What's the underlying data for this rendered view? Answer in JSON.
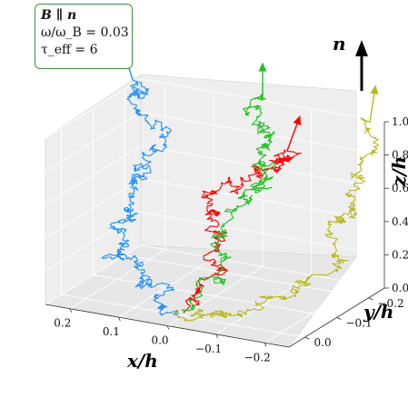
{
  "chart_data": {
    "type": "3d-line",
    "annotation": {
      "line1": "B ∥ n",
      "line2": "ω/ω_B = 0.03",
      "line3": "τ_eff = 6"
    },
    "xlabel": "x/h",
    "ylabel": "y/h",
    "zlabel": "z/h",
    "n_label": "n",
    "x_ticks": [
      "0.2",
      "0.1",
      "0.0",
      "−0.1",
      "−0.2"
    ],
    "y_ticks": [
      "−0.2",
      "−0.1",
      "0.0"
    ],
    "z_ticks": [
      "0.0",
      "0.2",
      "0.4",
      "0.6",
      "0.8",
      "1.0"
    ],
    "xlim": [
      -0.25,
      0.25
    ],
    "ylim": [
      -0.25,
      0.05
    ],
    "zlim": [
      0.0,
      1.0
    ],
    "grid": true,
    "series": [
      {
        "color": "#1e90ff",
        "start": [
          0.0,
          0.0,
          0.0
        ],
        "end": [
          0.26,
          -0.24,
          1.0
        ],
        "exit_arrow": true
      },
      {
        "color": "#ff0000",
        "start": [
          0.0,
          0.0,
          0.0
        ],
        "end": [
          -0.05,
          -0.25,
          0.72
        ],
        "exit_arrow": true
      },
      {
        "color": "#22c022",
        "start": [
          0.0,
          0.0,
          0.0
        ],
        "end": [
          0.0,
          -0.25,
          1.0
        ],
        "exit_arrow": true
      },
      {
        "color": "#b8b820",
        "start": [
          0.0,
          0.0,
          0.0
        ],
        "end": [
          -0.22,
          -0.25,
          0.98
        ],
        "exit_arrow": true
      }
    ]
  }
}
